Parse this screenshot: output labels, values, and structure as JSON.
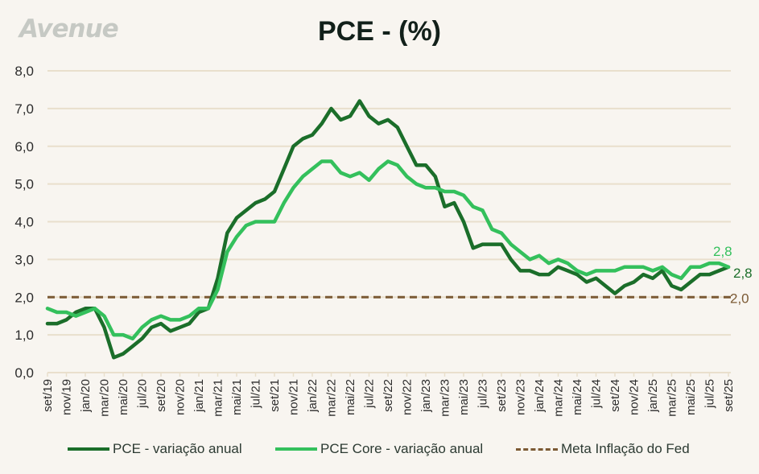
{
  "logo": {
    "text": "Avenue"
  },
  "chart_data": {
    "type": "line",
    "title": "PCE - (%)",
    "xlabel": "",
    "ylabel": "",
    "ylim": [
      0,
      8
    ],
    "yticks": [
      "0,0",
      "1,0",
      "2,0",
      "3,0",
      "4,0",
      "5,0",
      "6,0",
      "7,0",
      "8,0"
    ],
    "grid": true,
    "legend_position": "bottom",
    "x_tick_labels": [
      "set/19",
      "nov/19",
      "jan/20",
      "mar/20",
      "mai/20",
      "jul/20",
      "set/20",
      "nov/20",
      "jan/21",
      "mar/21",
      "mai/21",
      "jul/21",
      "set/21",
      "nov/21",
      "jan/22",
      "mar/22",
      "mai/22",
      "jul/22",
      "set/22",
      "nov/22",
      "jan/23",
      "mar/23",
      "mai/23",
      "jul/23",
      "set/23",
      "nov/23",
      "jan/24",
      "mar/24",
      "mai/24",
      "jul/24",
      "set/24",
      "nov/24",
      "jan/25",
      "mar/25",
      "mai/25",
      "jul/25",
      "set/25"
    ],
    "x_frequency": "monthly",
    "x_start": "set/19",
    "x_end": "set/25",
    "series": [
      {
        "name": "PCE - variação anual",
        "color": "#1b6e2a",
        "style": "solid",
        "end_label": "2,8",
        "values": [
          1.3,
          1.3,
          1.4,
          1.6,
          1.7,
          1.7,
          1.2,
          0.4,
          0.5,
          0.7,
          0.9,
          1.2,
          1.3,
          1.1,
          1.2,
          1.3,
          1.6,
          1.7,
          2.5,
          3.7,
          4.1,
          4.3,
          4.5,
          4.6,
          4.8,
          5.4,
          6.0,
          6.2,
          6.3,
          6.6,
          7.0,
          6.7,
          6.8,
          7.2,
          6.8,
          6.6,
          6.7,
          6.5,
          6.0,
          5.5,
          5.5,
          5.2,
          4.4,
          4.5,
          4.0,
          3.3,
          3.4,
          3.4,
          3.4,
          3.0,
          2.7,
          2.7,
          2.6,
          2.6,
          2.8,
          2.7,
          2.6,
          2.4,
          2.5,
          2.3,
          2.1,
          2.3,
          2.4,
          2.6,
          2.5,
          2.7,
          2.3,
          2.2,
          2.4,
          2.6,
          2.6,
          2.7,
          2.8
        ]
      },
      {
        "name": "PCE Core - variação anual",
        "color": "#34c05c",
        "style": "solid",
        "end_label": "2,8",
        "values": [
          1.7,
          1.6,
          1.6,
          1.5,
          1.6,
          1.7,
          1.5,
          1.0,
          1.0,
          0.9,
          1.2,
          1.4,
          1.5,
          1.4,
          1.4,
          1.5,
          1.7,
          1.7,
          2.2,
          3.2,
          3.6,
          3.9,
          4.0,
          4.0,
          4.0,
          4.5,
          4.9,
          5.2,
          5.4,
          5.6,
          5.6,
          5.3,
          5.2,
          5.3,
          5.1,
          5.4,
          5.6,
          5.5,
          5.2,
          5.0,
          4.9,
          4.9,
          4.8,
          4.8,
          4.7,
          4.4,
          4.3,
          3.8,
          3.7,
          3.4,
          3.2,
          3.0,
          3.1,
          2.9,
          3.0,
          2.9,
          2.7,
          2.6,
          2.7,
          2.7,
          2.7,
          2.8,
          2.8,
          2.8,
          2.7,
          2.8,
          2.6,
          2.5,
          2.8,
          2.8,
          2.9,
          2.9,
          2.8
        ]
      },
      {
        "name": "Meta Inflação do Fed",
        "color": "#7b5a34",
        "style": "dashed",
        "end_label": "2,0",
        "constant": 2.0
      }
    ]
  },
  "colors": {
    "background": "#f8f5f0",
    "gridline": "#e9dfcc",
    "pce": "#1b6e2a",
    "core": "#34c05c",
    "fed_target": "#7b5a34",
    "logo": "#c6c9c4"
  }
}
